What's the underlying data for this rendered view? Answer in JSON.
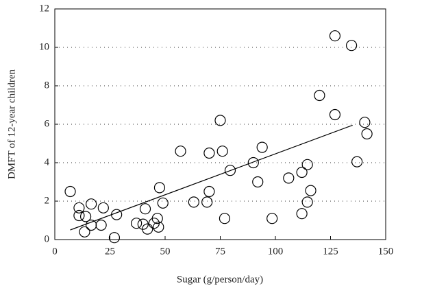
{
  "chart_data": {
    "type": "scatter",
    "x_label": "Sugar (g/person/day)",
    "y_label": "DMFT of 12-year children",
    "x": [
      7,
      11,
      11,
      14,
      16.5,
      22,
      16.5,
      21,
      13.5,
      27,
      28,
      37,
      40,
      41,
      42,
      45,
      46.5,
      47,
      47.5,
      49,
      57,
      63,
      69,
      70,
      70,
      75,
      76,
      77,
      79.5,
      90,
      92,
      94,
      98.5,
      106,
      112,
      112,
      114.5,
      114.5,
      116,
      120,
      127,
      127,
      134.5,
      137,
      140.5,
      141.5
    ],
    "values": [
      2.5,
      1.65,
      1.25,
      1.2,
      1.85,
      1.65,
      0.75,
      0.75,
      0.4,
      0.1,
      1.3,
      0.85,
      0.8,
      1.6,
      0.55,
      0.85,
      1.1,
      0.65,
      2.7,
      1.9,
      4.6,
      1.95,
      1.95,
      2.5,
      4.5,
      6.2,
      4.6,
      1.1,
      3.6,
      4.0,
      3.0,
      4.8,
      1.1,
      3.2,
      3.5,
      1.35,
      3.9,
      1.95,
      2.55,
      7.5,
      10.6,
      6.5,
      10.1,
      4.05,
      6.1,
      5.5
    ],
    "color": "#000000",
    "trend_line": {
      "x": [
        7,
        135
      ],
      "y": [
        0.5,
        5.95
      ]
    },
    "xlim": [
      0,
      150
    ],
    "xticks": [
      0,
      25,
      50,
      75,
      100,
      125,
      150
    ],
    "ylim": [
      0,
      12
    ],
    "yticks": [
      0,
      2,
      4,
      6,
      8,
      10,
      12
    ],
    "grid": true
  }
}
